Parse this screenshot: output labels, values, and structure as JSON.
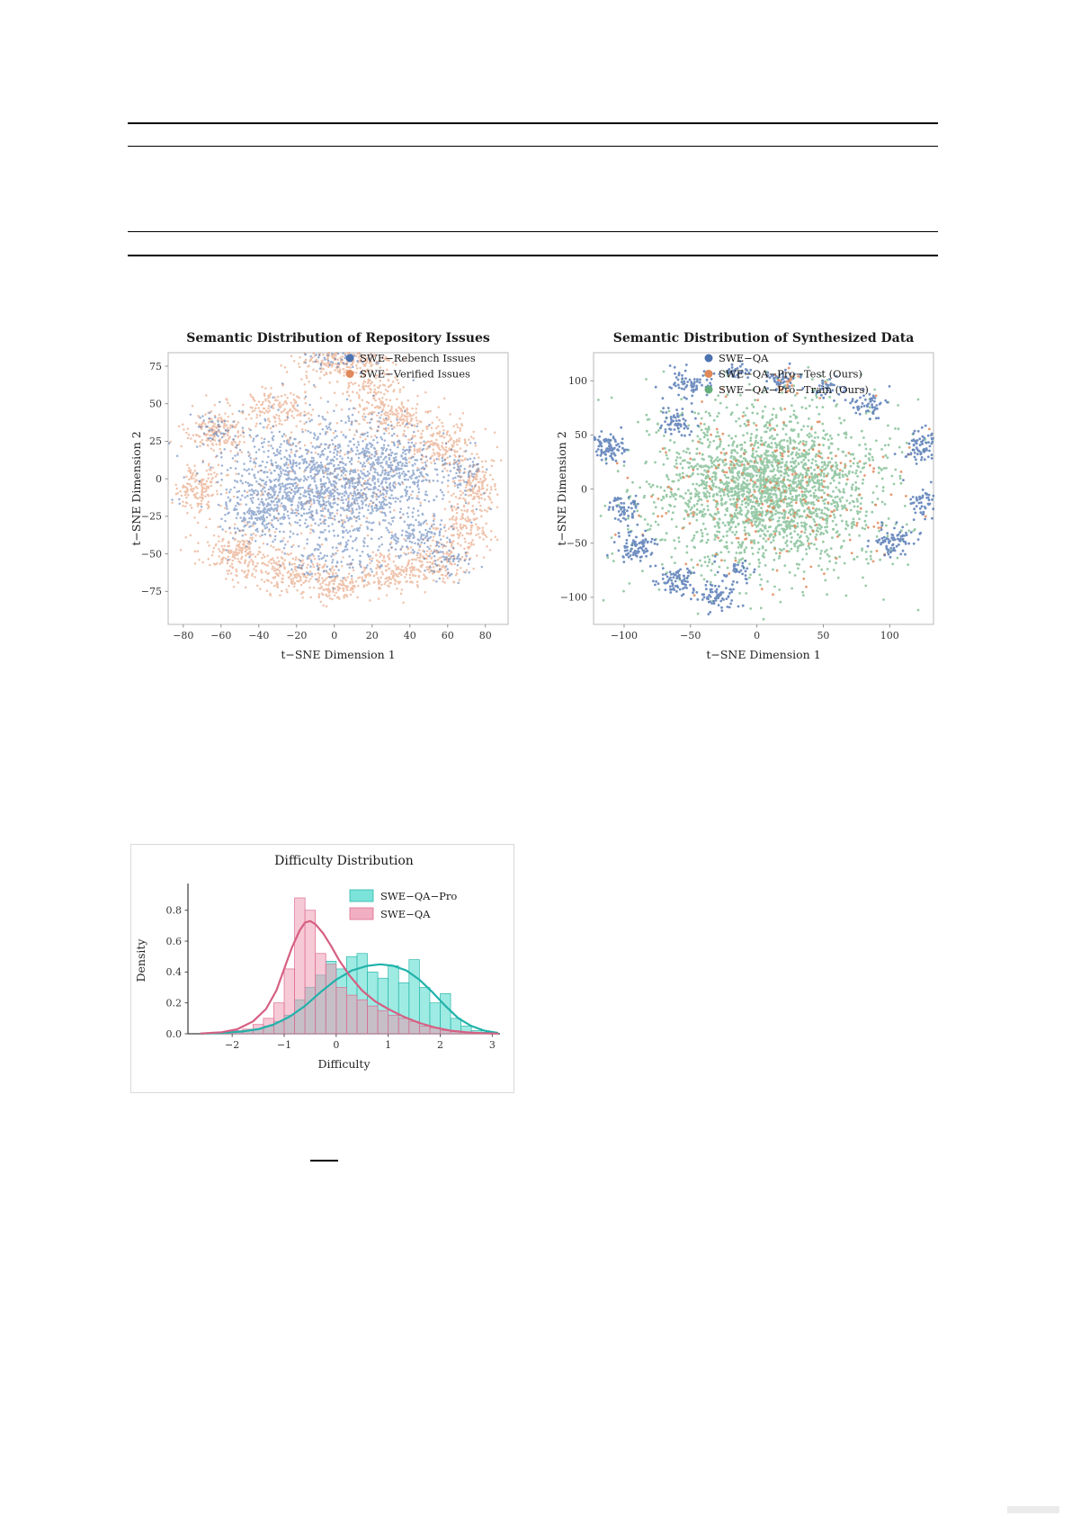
{
  "page": {
    "background": "#ffffff"
  },
  "chart_data": [
    {
      "id": "tsne_issues",
      "type": "scatter",
      "title": "Semantic Distribution of Repository Issues",
      "title_bold": true,
      "xlabel": "t-SNE Dimension 1",
      "ylabel": "t-SNE Dimension 2",
      "xlim": [
        -88,
        92
      ],
      "ylim": [
        -97,
        84
      ],
      "xticks": [
        -80,
        -60,
        -40,
        -20,
        0,
        20,
        40,
        60,
        80
      ],
      "yticks": [
        -75,
        -50,
        -25,
        0,
        25,
        50,
        75
      ],
      "grid": false,
      "legend_position": "upper-right-inside",
      "series": [
        {
          "name": "SWE-Rebench Issues",
          "color": "#4C72B0",
          "alpha": 0.55
        },
        {
          "name": "SWE-Verified Issues",
          "color": "#E0885A",
          "alpha": 0.5
        }
      ],
      "draw_order": [
        1,
        0
      ],
      "clusters": [
        {
          "s": 0,
          "x": -5,
          "y": -2,
          "sx": 26,
          "sy": 20,
          "n": 1400
        },
        {
          "s": 0,
          "x": 30,
          "y": 8,
          "sx": 12,
          "sy": 12,
          "n": 250
        },
        {
          "s": 0,
          "x": -40,
          "y": -22,
          "sx": 10,
          "sy": 8,
          "n": 150
        },
        {
          "s": 0,
          "x": 45,
          "y": -38,
          "sx": 8,
          "sy": 7,
          "n": 120
        },
        {
          "s": 0,
          "x": 5,
          "y": 80,
          "sx": 10,
          "sy": 5,
          "n": 60
        },
        {
          "s": 0,
          "x": -62,
          "y": 33,
          "sx": 6,
          "sy": 5,
          "n": 40
        },
        {
          "s": 0,
          "x": 60,
          "y": -55,
          "sx": 8,
          "sy": 6,
          "n": 60
        },
        {
          "s": 0,
          "x": 0,
          "y": -52,
          "sx": 14,
          "sy": 8,
          "n": 100
        },
        {
          "s": 0,
          "x": 65,
          "y": 5,
          "sx": 7,
          "sy": 8,
          "n": 70
        },
        {
          "s": 1,
          "x": 5,
          "y": 80,
          "sx": 13,
          "sy": 6,
          "n": 260
        },
        {
          "s": 1,
          "x": -30,
          "y": 48,
          "sx": 9,
          "sy": 7,
          "n": 150
        },
        {
          "s": 1,
          "x": -62,
          "y": 32,
          "sx": 8,
          "sy": 7,
          "n": 180
        },
        {
          "s": 1,
          "x": -72,
          "y": -8,
          "sx": 6,
          "sy": 9,
          "n": 140
        },
        {
          "s": 1,
          "x": -52,
          "y": -50,
          "sx": 9,
          "sy": 8,
          "n": 200
        },
        {
          "s": 1,
          "x": -25,
          "y": -62,
          "sx": 9,
          "sy": 7,
          "n": 160
        },
        {
          "s": 1,
          "x": 0,
          "y": -70,
          "sx": 9,
          "sy": 6,
          "n": 150
        },
        {
          "s": 1,
          "x": 28,
          "y": -62,
          "sx": 9,
          "sy": 7,
          "n": 160
        },
        {
          "s": 1,
          "x": 55,
          "y": -55,
          "sx": 9,
          "sy": 7,
          "n": 160
        },
        {
          "s": 1,
          "x": 70,
          "y": -32,
          "sx": 7,
          "sy": 7,
          "n": 130
        },
        {
          "s": 1,
          "x": 74,
          "y": -5,
          "sx": 6,
          "sy": 9,
          "n": 150
        },
        {
          "s": 1,
          "x": 58,
          "y": 22,
          "sx": 9,
          "sy": 7,
          "n": 170
        },
        {
          "s": 1,
          "x": 32,
          "y": 42,
          "sx": 11,
          "sy": 7,
          "n": 180
        },
        {
          "s": 1,
          "x": 18,
          "y": 60,
          "sx": 8,
          "sy": 5,
          "n": 80
        },
        {
          "s": 1,
          "x": 0,
          "y": 0,
          "sx": 35,
          "sy": 28,
          "n": 250
        }
      ]
    },
    {
      "id": "tsne_synth",
      "type": "scatter",
      "title": "Semantic Distribution of Synthesized Data",
      "title_bold": true,
      "xlabel": "t-SNE Dimension 1",
      "ylabel": "t-SNE Dimension 2",
      "xlim": [
        -123,
        133
      ],
      "ylim": [
        -125,
        126
      ],
      "xticks": [
        -100,
        -50,
        0,
        50,
        100
      ],
      "yticks": [
        -100,
        -50,
        0,
        50,
        100
      ],
      "grid": false,
      "legend_position": "upper-right-inside",
      "series": [
        {
          "name": "SWE-QA",
          "color": "#4C72B0",
          "alpha": 0.8
        },
        {
          "name": "SWE-QA-Pro-Test (Ours)",
          "color": "#E0885A",
          "alpha": 0.85
        },
        {
          "name": "SWE-QA-Pro-Train (Ours)",
          "color": "#63AE79",
          "alpha": 0.65
        }
      ],
      "draw_order": [
        2,
        1,
        0
      ],
      "clusters": [
        {
          "s": 2,
          "x": 8,
          "y": 2,
          "sx": 34,
          "sy": 30,
          "n": 1300
        },
        {
          "s": 2,
          "x": 8,
          "y": 2,
          "sx": 55,
          "sy": 48,
          "n": 900
        },
        {
          "s": 1,
          "x": 10,
          "y": 0,
          "sx": 45,
          "sy": 40,
          "n": 240
        },
        {
          "s": 1,
          "x": 20,
          "y": 98,
          "sx": 6,
          "sy": 5,
          "n": 25
        },
        {
          "s": 0,
          "x": -112,
          "y": 40,
          "sx": 7,
          "sy": 7,
          "n": 90
        },
        {
          "s": 0,
          "x": -100,
          "y": -18,
          "sx": 6,
          "sy": 6,
          "n": 60
        },
        {
          "s": 0,
          "x": -90,
          "y": -55,
          "sx": 8,
          "sy": 7,
          "n": 90
        },
        {
          "s": 0,
          "x": -60,
          "y": -85,
          "sx": 8,
          "sy": 6,
          "n": 80
        },
        {
          "s": 0,
          "x": -28,
          "y": -100,
          "sx": 8,
          "sy": 5,
          "n": 70
        },
        {
          "s": 0,
          "x": 125,
          "y": 40,
          "sx": 8,
          "sy": 8,
          "n": 90
        },
        {
          "s": 0,
          "x": 128,
          "y": -12,
          "sx": 6,
          "sy": 8,
          "n": 60
        },
        {
          "s": 0,
          "x": 103,
          "y": -48,
          "sx": 8,
          "sy": 7,
          "n": 80
        },
        {
          "s": 0,
          "x": -52,
          "y": 95,
          "sx": 8,
          "sy": 6,
          "n": 70
        },
        {
          "s": 0,
          "x": -15,
          "y": 108,
          "sx": 6,
          "sy": 4,
          "n": 40
        },
        {
          "s": 0,
          "x": 18,
          "y": 103,
          "sx": 6,
          "sy": 5,
          "n": 45
        },
        {
          "s": 0,
          "x": 85,
          "y": 80,
          "sx": 7,
          "sy": 6,
          "n": 55
        },
        {
          "s": 0,
          "x": -60,
          "y": 62,
          "sx": 7,
          "sy": 6,
          "n": 60
        },
        {
          "s": 0,
          "x": 55,
          "y": 92,
          "sx": 6,
          "sy": 5,
          "n": 35
        },
        {
          "s": 0,
          "x": -15,
          "y": -78,
          "sx": 10,
          "sy": 6,
          "n": 40
        }
      ]
    },
    {
      "id": "difficulty",
      "type": "histogram",
      "title": "Difficulty Distribution",
      "title_bold": false,
      "xlabel": "Difficulty",
      "ylabel": "Density",
      "xlim": [
        -2.85,
        3.15
      ],
      "ylim": [
        0,
        0.95
      ],
      "xticks": [
        -2,
        -1,
        0,
        1,
        2,
        3
      ],
      "yticks": [
        0.0,
        0.2,
        0.4,
        0.6,
        0.8
      ],
      "bin_start": -2.6,
      "bin_width": 0.2,
      "series": [
        {
          "name": "SWE-QA-Pro",
          "color": "#4FDACC",
          "edge": "#2cb8ab",
          "curve_color": "#20B2AA",
          "alpha": 0.55,
          "values": [
            0,
            0,
            0.01,
            0.01,
            0.02,
            0.03,
            0.05,
            0.08,
            0.12,
            0.22,
            0.3,
            0.38,
            0.47,
            0.42,
            0.5,
            0.52,
            0.4,
            0.36,
            0.44,
            0.33,
            0.48,
            0.3,
            0.2,
            0.26,
            0.1,
            0.05,
            0.02,
            0.01
          ],
          "curve": [
            [
              -2.6,
              0.001
            ],
            [
              -2.2,
              0.005
            ],
            [
              -1.8,
              0.015
            ],
            [
              -1.5,
              0.03
            ],
            [
              -1.2,
              0.06
            ],
            [
              -0.9,
              0.11
            ],
            [
              -0.6,
              0.18
            ],
            [
              -0.3,
              0.27
            ],
            [
              0,
              0.35
            ],
            [
              0.3,
              0.41
            ],
            [
              0.6,
              0.44
            ],
            [
              0.85,
              0.45
            ],
            [
              1.1,
              0.44
            ],
            [
              1.35,
              0.41
            ],
            [
              1.6,
              0.35
            ],
            [
              1.85,
              0.27
            ],
            [
              2.1,
              0.18
            ],
            [
              2.35,
              0.1
            ],
            [
              2.6,
              0.05
            ],
            [
              2.85,
              0.02
            ],
            [
              3.1,
              0.006
            ]
          ]
        },
        {
          "name": "SWE-QA",
          "color": "#EE93AE",
          "edge": "#dd6c90",
          "curve_color": "#D65F82",
          "alpha": 0.5,
          "values": [
            0.005,
            0.01,
            0.01,
            0.02,
            0.03,
            0.06,
            0.1,
            0.2,
            0.42,
            0.88,
            0.8,
            0.52,
            0.45,
            0.3,
            0.25,
            0.22,
            0.18,
            0.15,
            0.12,
            0.1,
            0.08,
            0.05,
            0.04,
            0.02,
            0.015,
            0.01,
            0.005,
            0
          ],
          "curve": [
            [
              -2.6,
              0.002
            ],
            [
              -2.2,
              0.01
            ],
            [
              -1.9,
              0.03
            ],
            [
              -1.6,
              0.08
            ],
            [
              -1.35,
              0.16
            ],
            [
              -1.15,
              0.28
            ],
            [
              -1.0,
              0.42
            ],
            [
              -0.85,
              0.56
            ],
            [
              -0.7,
              0.67
            ],
            [
              -0.6,
              0.72
            ],
            [
              -0.5,
              0.73
            ],
            [
              -0.4,
              0.71
            ],
            [
              -0.25,
              0.65
            ],
            [
              -0.1,
              0.57
            ],
            [
              0.05,
              0.48
            ],
            [
              0.25,
              0.38
            ],
            [
              0.5,
              0.28
            ],
            [
              0.75,
              0.21
            ],
            [
              1.0,
              0.16
            ],
            [
              1.3,
              0.11
            ],
            [
              1.6,
              0.07
            ],
            [
              1.9,
              0.04
            ],
            [
              2.2,
              0.02
            ],
            [
              2.5,
              0.01
            ],
            [
              2.8,
              0.004
            ],
            [
              3.1,
              0.001
            ]
          ]
        }
      ]
    }
  ]
}
